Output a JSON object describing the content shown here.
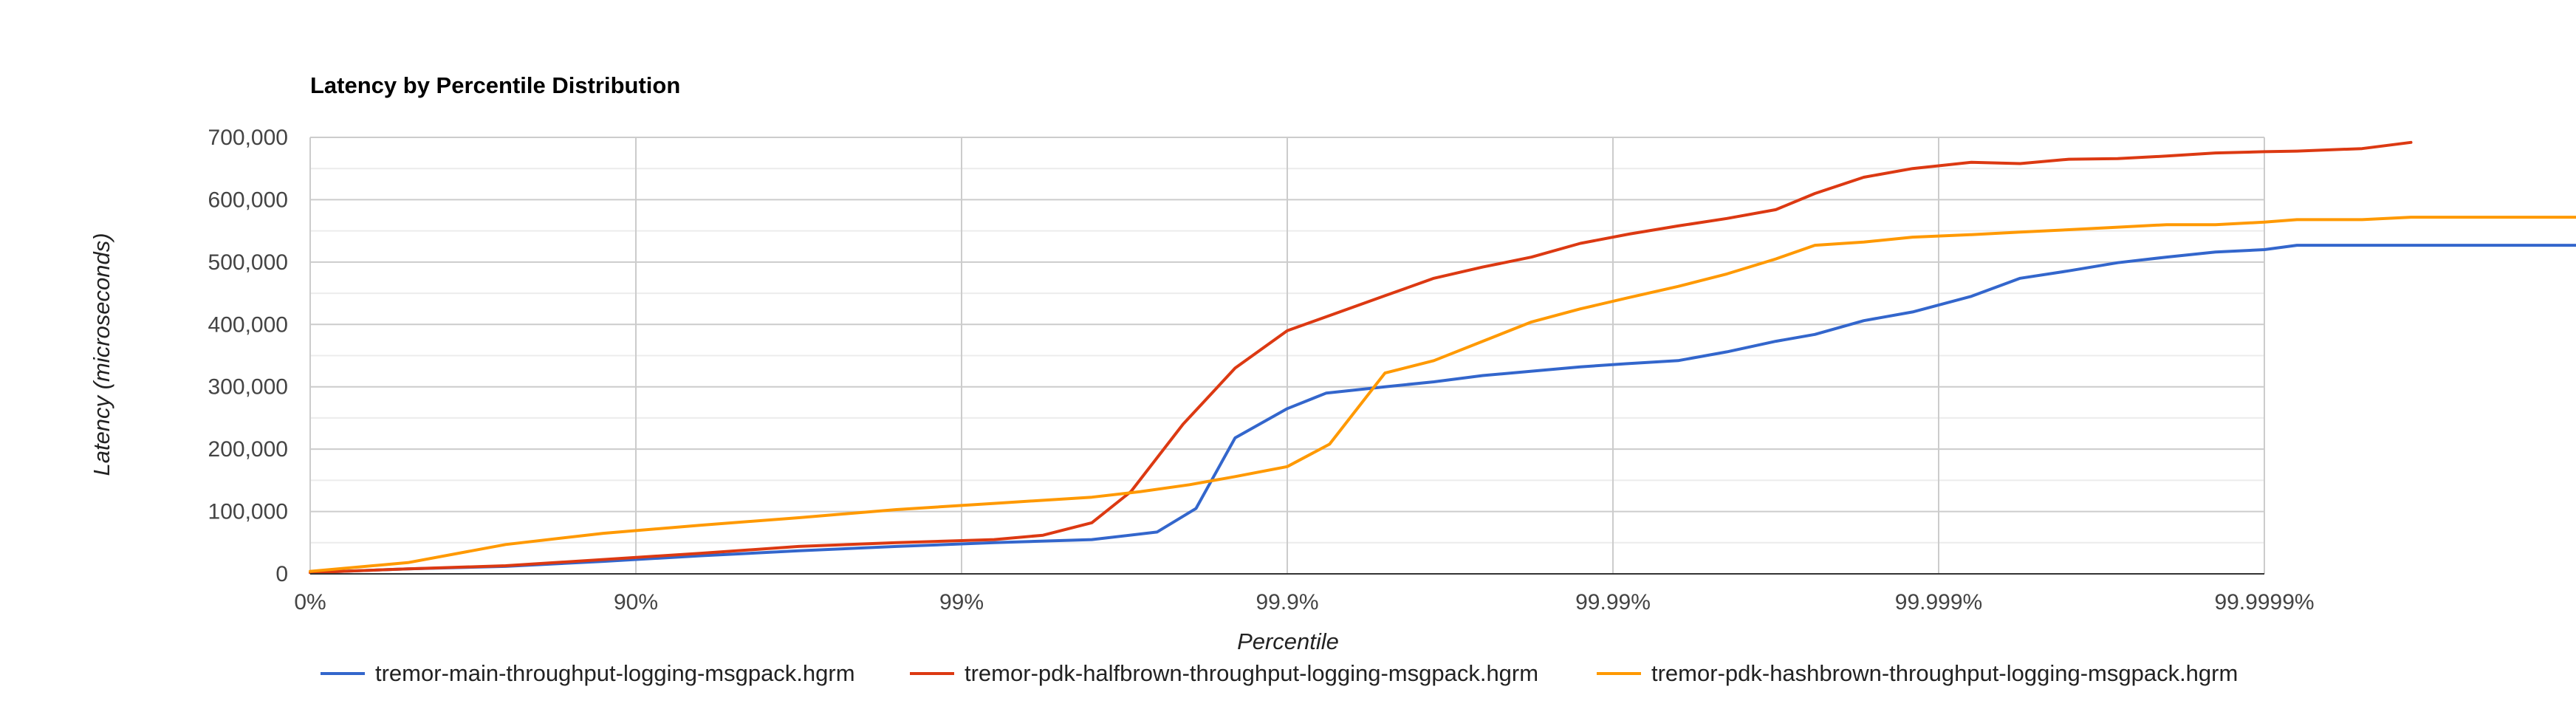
{
  "chart_data": {
    "type": "line",
    "title": "Latency by Percentile Distribution",
    "xlabel": "Percentile",
    "ylabel": "Latency (microseconds)",
    "x_scale": "percentile (log of 1/(1-p))",
    "x_ticks": [
      "0%",
      "90%",
      "99%",
      "99.9%",
      "99.99%",
      "99.999%",
      "99.9999%"
    ],
    "x_tick_nines": [
      0,
      1,
      2,
      3,
      4,
      5,
      6
    ],
    "y_ticks": [
      "0",
      "100,000",
      "200,000",
      "300,000",
      "400,000",
      "500,000",
      "600,000",
      "700,000"
    ],
    "ylim": [
      0,
      700000
    ],
    "grid": true,
    "legend_position": "bottom",
    "series": [
      {
        "name": "tremor-main-throughput-logging-msgpack.hgrm",
        "color": "#3366cc",
        "x": [
          0,
          0.3,
          0.6,
          0.9,
          1.2,
          1.5,
          1.8,
          2.1,
          2.4,
          2.6,
          2.72,
          2.84,
          3.0,
          3.12,
          3.3,
          3.45,
          3.6,
          3.75,
          3.9,
          4.04,
          4.2,
          4.35,
          4.5,
          4.62,
          4.77,
          4.92,
          5.1,
          5.25,
          5.4,
          5.55,
          5.7,
          5.85,
          6.0,
          6.1,
          6.3,
          6.6,
          6.9,
          7.0
        ],
        "values": [
          2000,
          8000,
          12000,
          20000,
          29000,
          37000,
          44000,
          50000,
          55000,
          67000,
          105000,
          218000,
          265000,
          290000,
          300000,
          308000,
          318000,
          325000,
          332000,
          337000,
          342000,
          356000,
          373000,
          384000,
          406000,
          420000,
          445000,
          474000,
          486000,
          499000,
          508000,
          516000,
          520000,
          527000,
          527000,
          527000,
          527000,
          527000
        ]
      },
      {
        "name": "tremor-pdk-halfbrown-throughput-logging-msgpack.hgrm",
        "color": "#dc3912",
        "x": [
          0,
          0.3,
          0.6,
          0.9,
          1.2,
          1.5,
          1.8,
          2.1,
          2.25,
          2.4,
          2.52,
          2.68,
          2.84,
          3.0,
          3.15,
          3.3,
          3.45,
          3.6,
          3.75,
          3.9,
          4.05,
          4.2,
          4.35,
          4.5,
          4.62,
          4.77,
          4.92,
          5.1,
          5.25,
          5.4,
          5.55,
          5.7,
          5.85,
          6.0,
          6.1,
          6.3,
          6.45
        ],
        "values": [
          2000,
          8000,
          13000,
          23000,
          33000,
          44000,
          50000,
          55000,
          62000,
          82000,
          132000,
          240000,
          330000,
          390000,
          418000,
          446000,
          474000,
          492000,
          508000,
          530000,
          545000,
          558000,
          570000,
          584000,
          610000,
          636000,
          650000,
          660000,
          658000,
          665000,
          666000,
          670000,
          675000,
          677000,
          678000,
          682000,
          692000
        ]
      },
      {
        "name": "tremor-pdk-hashbrown-throughput-logging-msgpack.hgrm",
        "color": "#ff9900",
        "x": [
          0,
          0.3,
          0.6,
          0.9,
          1.2,
          1.5,
          1.8,
          2.1,
          2.4,
          2.55,
          2.7,
          2.84,
          3.0,
          3.13,
          3.3,
          3.45,
          3.6,
          3.75,
          3.9,
          4.04,
          4.2,
          4.35,
          4.5,
          4.62,
          4.77,
          4.92,
          5.1,
          5.25,
          5.4,
          5.55,
          5.7,
          5.85,
          6.0,
          6.1,
          6.3,
          6.45,
          6.6,
          7.0
        ],
        "values": [
          4000,
          18000,
          47000,
          65000,
          78000,
          90000,
          103000,
          113000,
          123000,
          132000,
          143000,
          156000,
          172000,
          208000,
          322000,
          342000,
          373000,
          404000,
          425000,
          442000,
          461000,
          481000,
          505000,
          527000,
          532000,
          540000,
          544000,
          548000,
          552000,
          556000,
          560000,
          560000,
          564000,
          568000,
          568000,
          572000,
          572000,
          572000
        ]
      }
    ]
  }
}
